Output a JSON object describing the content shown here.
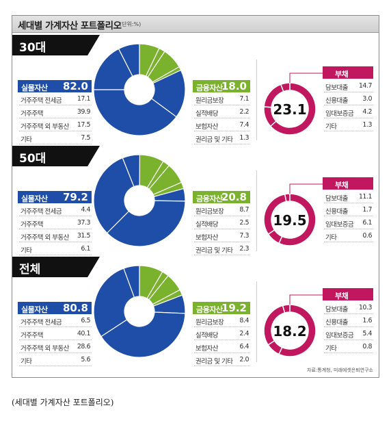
{
  "title": "세대별 가계자산 포트폴리오",
  "unit": "(단위:%)",
  "source": "자료:통계청, 미래에셋은퇴연구소",
  "caption": "(세대별 가계자산 포트폴리오)",
  "colors": {
    "real": "#1f4ea8",
    "financial": "#7ab22e",
    "debt": "#c0175e",
    "header": "#111111"
  },
  "chart_data": [
    {
      "type": "pie",
      "group": "30대",
      "real": {
        "label": "실물자산",
        "total": "82.0",
        "items": [
          {
            "label": "거주주택 전세금",
            "value": "17.1"
          },
          {
            "label": "거주주택",
            "value": "39.9"
          },
          {
            "label": "거주주택 외 부동산",
            "value": "17.5"
          },
          {
            "label": "기타",
            "value": "7.5"
          }
        ]
      },
      "financial": {
        "label": "금융자산",
        "total": "18.0",
        "items": [
          {
            "label": "원리금보장",
            "value": "7.1"
          },
          {
            "label": "실적배당",
            "value": "2.2"
          },
          {
            "label": "보험자산",
            "value": "7.4"
          },
          {
            "label": "권리금 및 기타",
            "value": "1.3"
          }
        ]
      },
      "debt": {
        "label": "부채",
        "total": "23.1",
        "items": [
          {
            "label": "담보대출",
            "value": "14.7"
          },
          {
            "label": "신용대출",
            "value": "3.0"
          },
          {
            "label": "임대보증금",
            "value": "4.2"
          },
          {
            "label": "기타",
            "value": "1.3"
          }
        ]
      }
    },
    {
      "type": "pie",
      "group": "50대",
      "real": {
        "label": "실물자산",
        "total": "79.2",
        "items": [
          {
            "label": "거주주택 전세금",
            "value": "4.4"
          },
          {
            "label": "거주주택",
            "value": "37.3"
          },
          {
            "label": "거주주택 외 부동산",
            "value": "31.5"
          },
          {
            "label": "기타",
            "value": "6.1"
          }
        ]
      },
      "financial": {
        "label": "금융자산",
        "total": "20.8",
        "items": [
          {
            "label": "원리금보장",
            "value": "8.7"
          },
          {
            "label": "실적배당",
            "value": "2.5"
          },
          {
            "label": "보험자산",
            "value": "7.3"
          },
          {
            "label": "권리금 및 기타",
            "value": "2.3"
          }
        ]
      },
      "debt": {
        "label": "부채",
        "total": "19.5",
        "items": [
          {
            "label": "담보대출",
            "value": "11.1"
          },
          {
            "label": "신용대출",
            "value": "1.7"
          },
          {
            "label": "임대보증금",
            "value": "6.1"
          },
          {
            "label": "기타",
            "value": "0.6"
          }
        ]
      }
    },
    {
      "type": "pie",
      "group": "전체",
      "real": {
        "label": "실물자산",
        "total": "80.8",
        "items": [
          {
            "label": "거주주택 전세금",
            "value": "6.5"
          },
          {
            "label": "거주주택",
            "value": "40.1"
          },
          {
            "label": "거주주택 외 부동산",
            "value": "28.6"
          },
          {
            "label": "기타",
            "value": "5.6"
          }
        ]
      },
      "financial": {
        "label": "금융자산",
        "total": "19.2",
        "items": [
          {
            "label": "원리금보장",
            "value": "8.4"
          },
          {
            "label": "실적배당",
            "value": "2.4"
          },
          {
            "label": "보험자산",
            "value": "6.4"
          },
          {
            "label": "권리금 및 기타",
            "value": "2.0"
          }
        ]
      },
      "debt": {
        "label": "부채",
        "total": "18.2",
        "items": [
          {
            "label": "담보대출",
            "value": "10.3"
          },
          {
            "label": "신용대출",
            "value": "1.6"
          },
          {
            "label": "임대보증금",
            "value": "5.4"
          },
          {
            "label": "기타",
            "value": "0.8"
          }
        ]
      }
    }
  ]
}
